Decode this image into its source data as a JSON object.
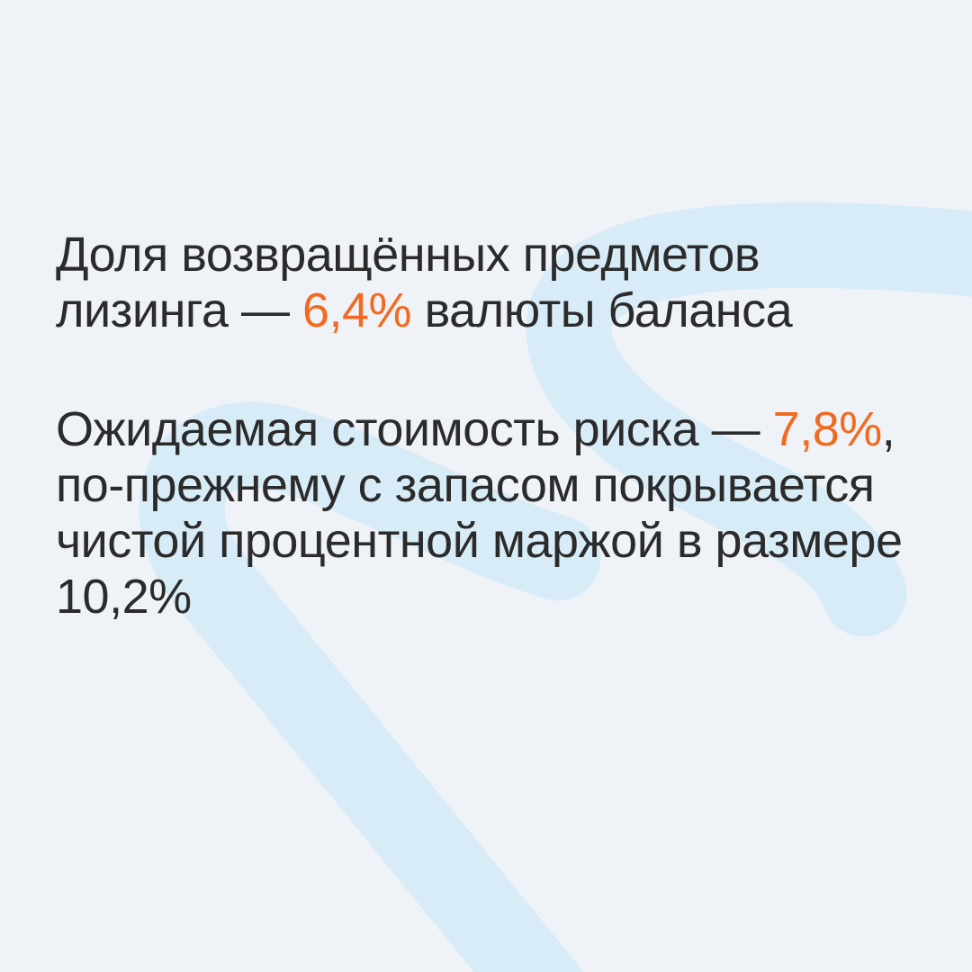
{
  "colors": {
    "background": "#eff3f7",
    "text": "#2b2b2b",
    "accent": "#f26a21",
    "decor": "#d8ecf8"
  },
  "paragraphs": [
    {
      "before": "Доля возвращённых предметов лизинга — ",
      "highlight": "6,4%",
      "after": " валюты баланса"
    },
    {
      "before": "Ожидаемая стоимость риска — ",
      "highlight": "7,8%",
      "after": ", по-прежнему с запасом покрывается чистой процентной маржой в размере 10,2%"
    }
  ]
}
